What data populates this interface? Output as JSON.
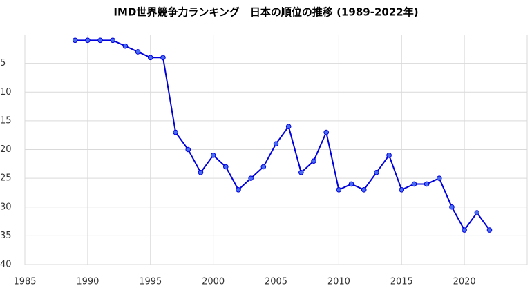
{
  "chart_data": {
    "type": "line",
    "title": "IMD世界競争力ランキング　日本の順位の推移 (1989-2022年)",
    "x": [
      1989,
      1990,
      1991,
      1992,
      1993,
      1994,
      1995,
      1996,
      1997,
      1998,
      1999,
      2000,
      2001,
      2002,
      2003,
      2004,
      2005,
      2006,
      2007,
      2008,
      2009,
      2010,
      2011,
      2012,
      2013,
      2014,
      2015,
      2016,
      2017,
      2018,
      2019,
      2020,
      2021,
      2022
    ],
    "series": [
      {
        "name": "日本の順位",
        "color": "#0000dd",
        "marker_color": "#4a6cf0",
        "values": [
          1,
          1,
          1,
          1,
          2,
          3,
          4,
          4,
          17,
          20,
          24,
          21,
          23,
          27,
          25,
          23,
          19,
          16,
          24,
          22,
          17,
          27,
          26,
          27,
          24,
          21,
          27,
          26,
          26,
          25,
          30,
          34,
          31,
          34
        ]
      }
    ],
    "xlim": [
      1985,
      2025
    ],
    "xticks": [
      1985,
      1990,
      1995,
      2000,
      2005,
      2010,
      2015,
      2020
    ],
    "ylim": [
      0,
      40
    ],
    "yticks": [
      5,
      10,
      15,
      20,
      25,
      30,
      35,
      40
    ],
    "y_inverted": true,
    "grid": true
  }
}
